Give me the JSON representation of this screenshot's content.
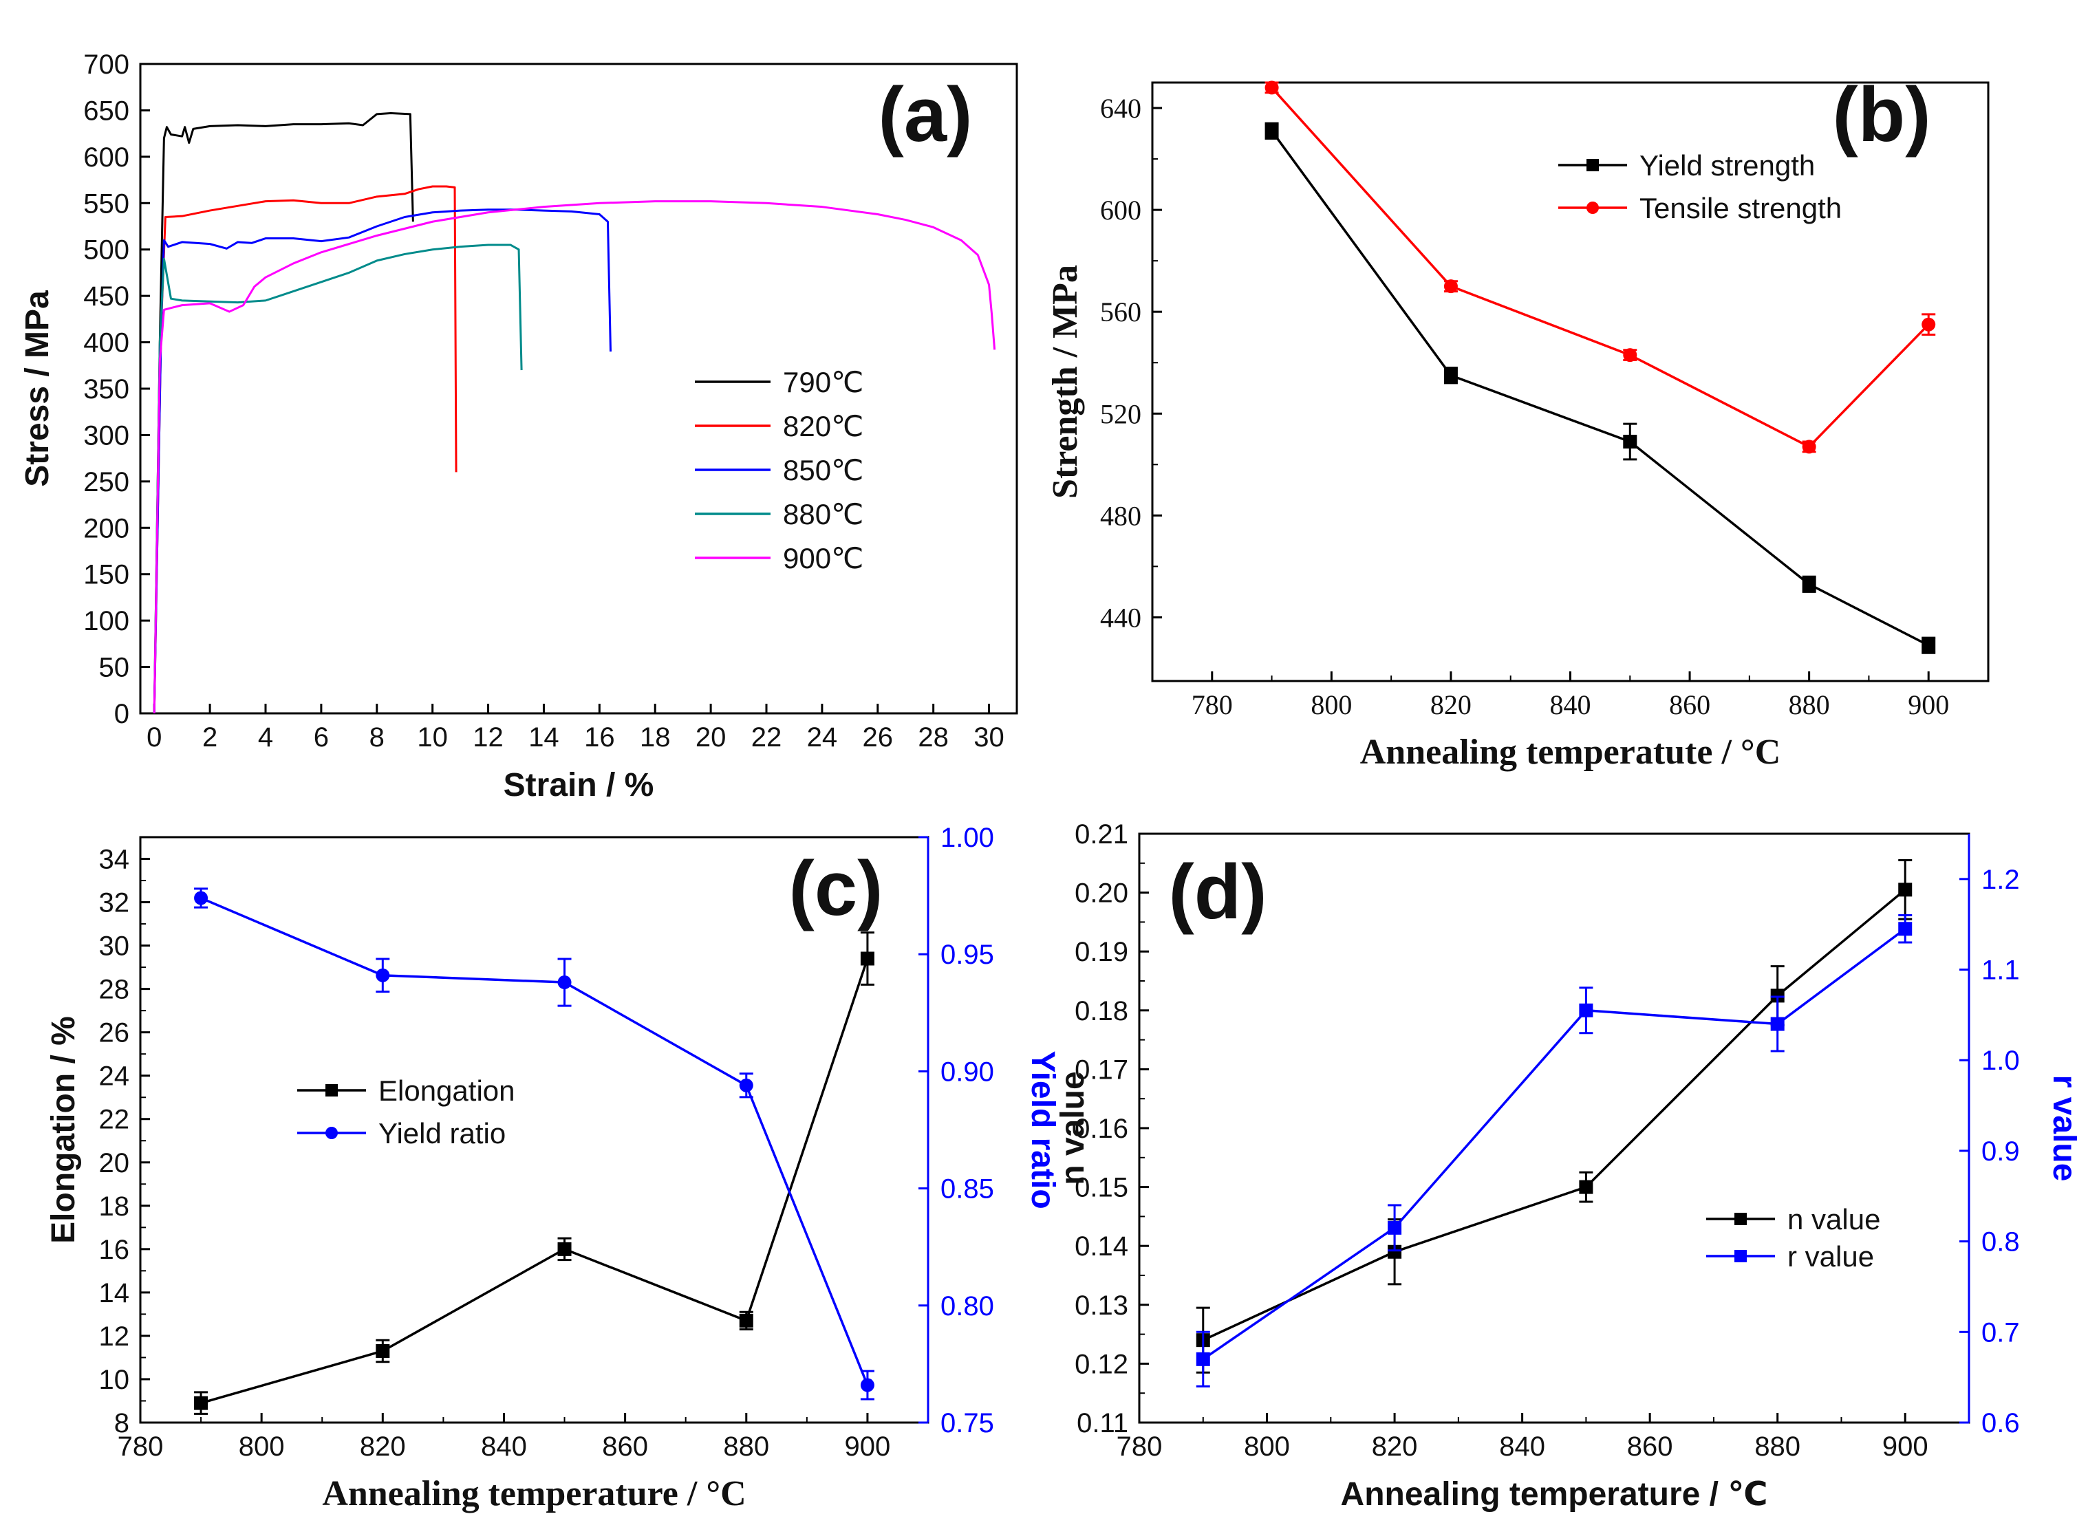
{
  "chart_data": [
    {
      "panel": "(a)",
      "type": "line",
      "xlabel": "Strain / %",
      "ylabel": "Stress / MPa",
      "xlim": [
        -0.5,
        31
      ],
      "ylim": [
        0,
        700
      ],
      "xticks": [
        0,
        2,
        4,
        6,
        8,
        10,
        12,
        14,
        16,
        18,
        20,
        22,
        24,
        26,
        28,
        30
      ],
      "yticks": [
        0,
        50,
        100,
        150,
        200,
        250,
        300,
        350,
        400,
        450,
        500,
        550,
        600,
        650,
        700
      ],
      "legend_position": "center-right",
      "series": [
        {
          "name": "790℃",
          "color": "#000000",
          "x": [
            0,
            0.2,
            0.35,
            0.45,
            0.6,
            1.0,
            1.1,
            1.25,
            1.4,
            2,
            3,
            4,
            5,
            6,
            7,
            7.5,
            8,
            8.5,
            9.2,
            9.3
          ],
          "y": [
            0,
            400,
            620,
            632,
            624,
            622,
            632,
            615,
            630,
            633,
            634,
            633,
            635,
            635,
            636,
            634,
            646,
            647,
            646,
            530
          ]
        },
        {
          "name": "820℃",
          "color": "#ff0000",
          "x": [
            0,
            0.25,
            0.4,
            1,
            2,
            3,
            4,
            5,
            6,
            7,
            8,
            9,
            9.5,
            10,
            10.5,
            10.8,
            10.85
          ],
          "y": [
            0,
            420,
            535,
            536,
            542,
            547,
            552,
            553,
            550,
            550,
            557,
            560,
            565,
            568,
            568,
            567,
            260
          ]
        },
        {
          "name": "850℃",
          "color": "#0000ff",
          "x": [
            0,
            0.25,
            0.35,
            0.5,
            1,
            2,
            2.6,
            3,
            3.5,
            4,
            5,
            6,
            7,
            8,
            9,
            10,
            11,
            12,
            13,
            14,
            15,
            16,
            16.3,
            16.4
          ],
          "y": [
            0,
            420,
            510,
            503,
            508,
            506,
            501,
            508,
            507,
            512,
            512,
            509,
            513,
            525,
            535,
            540,
            542,
            543,
            543,
            542,
            541,
            538,
            530,
            390
          ]
        },
        {
          "name": "880℃",
          "color": "#008b8b",
          "x": [
            0,
            0.2,
            0.35,
            0.6,
            1,
            2,
            3,
            4,
            4.5,
            5,
            6,
            7,
            8,
            9,
            10,
            11,
            12,
            12.8,
            13.1,
            13.2
          ],
          "y": [
            0,
            400,
            490,
            447,
            445,
            444,
            443,
            445,
            450,
            455,
            465,
            475,
            488,
            495,
            500,
            503,
            505,
            505,
            500,
            370
          ]
        },
        {
          "name": "900℃",
          "color": "#ff00ff",
          "x": [
            0,
            0.2,
            0.35,
            0.6,
            1,
            2,
            2.7,
            3.2,
            3.6,
            4,
            5,
            6,
            8,
            10,
            12,
            14,
            16,
            18,
            20,
            22,
            24,
            26,
            27,
            28,
            29,
            29.6,
            30,
            30.1,
            30.2
          ],
          "y": [
            0,
            380,
            435,
            437,
            440,
            442,
            433,
            440,
            460,
            470,
            485,
            497,
            515,
            530,
            540,
            546,
            550,
            552,
            552,
            550,
            546,
            538,
            532,
            524,
            510,
            494,
            462,
            430,
            392
          ]
        }
      ]
    },
    {
      "panel": "(b)",
      "type": "line",
      "xlabel": "Annealing temperatute / °C",
      "ylabel": "Strength / MPa",
      "xlim": [
        770,
        910
      ],
      "ylim": [
        415,
        650
      ],
      "xticks": [
        780,
        800,
        820,
        840,
        860,
        880,
        900
      ],
      "yticks": [
        440,
        480,
        520,
        560,
        600,
        640
      ],
      "legend_position": "top-right",
      "series": [
        {
          "name": "Yield    strength",
          "color": "#000000",
          "marker": "square",
          "x": [
            790,
            820,
            850,
            880,
            900
          ],
          "y": [
            631,
            535,
            509,
            453,
            429
          ],
          "err": [
            3,
            3,
            7,
            3,
            3
          ]
        },
        {
          "name": "Tensile strength",
          "color": "#ff0000",
          "marker": "circle",
          "x": [
            790,
            820,
            850,
            880,
            900
          ],
          "y": [
            648,
            570,
            543,
            507,
            555
          ],
          "err": [
            2,
            2,
            2,
            2,
            4
          ]
        }
      ]
    },
    {
      "panel": "(c)",
      "type": "line",
      "xlabel": "Annealing temperature / °C",
      "ylabel": "Elongation / %",
      "ylabel_right": "Yield ratio",
      "xlim": [
        780,
        910
      ],
      "ylim": [
        8,
        35
      ],
      "ylim_right": [
        0.75,
        1.0
      ],
      "xticks": [
        780,
        800,
        820,
        840,
        860,
        880,
        900
      ],
      "yticks": [
        8,
        10,
        12,
        14,
        16,
        18,
        20,
        22,
        24,
        26,
        28,
        30,
        32,
        34
      ],
      "yticks_right": [
        0.75,
        0.8,
        0.85,
        0.9,
        0.95,
        1.0
      ],
      "yticks_right_labels": [
        "0.75",
        "0.80",
        "0.85",
        "0.90",
        "0.95",
        "1.00"
      ],
      "legend_position": "center-left",
      "series": [
        {
          "name": "Elongation",
          "color": "#000000",
          "marker": "square",
          "axis": "left",
          "x": [
            790,
            820,
            850,
            880,
            900
          ],
          "y": [
            8.9,
            11.3,
            16.0,
            12.7,
            29.4
          ],
          "err": [
            0.5,
            0.5,
            0.5,
            0.4,
            1.2
          ]
        },
        {
          "name": "Yield ratio",
          "color": "#0000ff",
          "marker": "circle",
          "axis": "right",
          "x": [
            790,
            820,
            850,
            880,
            900
          ],
          "y": [
            0.974,
            0.941,
            0.938,
            0.894,
            0.766
          ],
          "err": [
            0.004,
            0.007,
            0.01,
            0.005,
            0.006
          ]
        }
      ]
    },
    {
      "panel": "(d)",
      "type": "line",
      "xlabel": "Annealing temperature / ℃",
      "ylabel": "n value",
      "ylabel_right": "r value",
      "xlim": [
        780,
        910
      ],
      "ylim": [
        0.11,
        0.21
      ],
      "ylim_right": [
        0.6,
        1.25
      ],
      "xticks": [
        780,
        800,
        820,
        840,
        860,
        880,
        900
      ],
      "yticks": [
        0.11,
        0.12,
        0.13,
        0.14,
        0.15,
        0.16,
        0.17,
        0.18,
        0.19,
        0.2,
        0.21
      ],
      "yticks_labels": [
        "0.11",
        "0.12",
        "0.13",
        "0.14",
        "0.15",
        "0.16",
        "0.17",
        "0.18",
        "0.19",
        "0.20",
        "0.21"
      ],
      "yticks_right": [
        0.6,
        0.7,
        0.8,
        0.9,
        1.0,
        1.1,
        1.2
      ],
      "yticks_right_labels": [
        "0.6",
        "0.7",
        "0.8",
        "0.9",
        "1.0",
        "1.1",
        "1.2"
      ],
      "legend_position": "center-right",
      "series": [
        {
          "name": "n value",
          "color": "#000000",
          "marker": "square",
          "axis": "left",
          "x": [
            790,
            820,
            850,
            880,
            900
          ],
          "y": [
            0.124,
            0.139,
            0.15,
            0.1825,
            0.2005
          ],
          "err": [
            0.0055,
            0.0055,
            0.0025,
            0.005,
            0.005
          ]
        },
        {
          "name": "r value",
          "color": "#0000ff",
          "marker": "square",
          "axis": "right",
          "x": [
            790,
            820,
            850,
            880,
            900
          ],
          "y": [
            0.67,
            0.815,
            1.055,
            1.04,
            1.145
          ],
          "err": [
            0.03,
            0.025,
            0.025,
            0.03,
            0.015
          ]
        }
      ]
    }
  ]
}
